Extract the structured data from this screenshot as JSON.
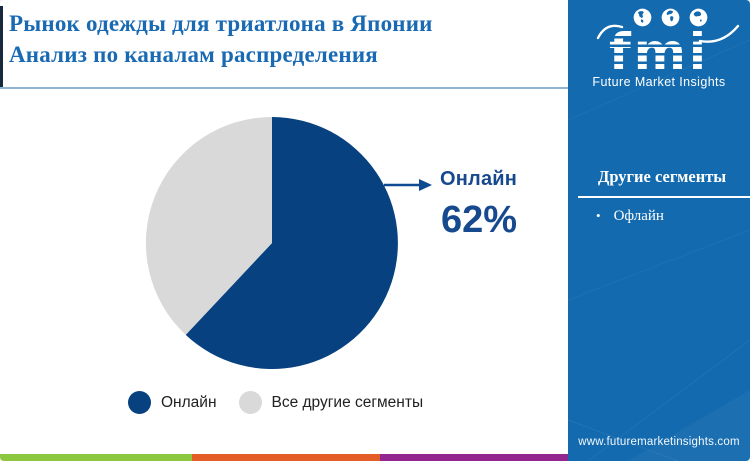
{
  "title": {
    "line1": "Рынок одежды для триатлона в Японии",
    "line2": "Анализ по каналам распределения"
  },
  "chart_data": {
    "type": "pie",
    "title": "Рынок одежды для триатлона в Японии — анализ по каналам распределения",
    "labels": [
      "Онлайн",
      "Все другие сегменты"
    ],
    "values": [
      62,
      38
    ],
    "colors": [
      "#07417f",
      "#d9d9d9"
    ],
    "callout": {
      "label": "Онлайн",
      "value": "62%"
    },
    "legend_position": "bottom",
    "start_angle_deg": 0,
    "direction": "clockwise"
  },
  "logo": {
    "word": "fmi",
    "subtitle": "Future Market Insights",
    "icons": [
      "globe-americas-icon",
      "globe-europe-icon",
      "globe-asia-icon"
    ]
  },
  "side_panel": {
    "heading": "Другие сегменты",
    "items": [
      "Офлайн"
    ],
    "website": "www.futuremarketinsights.com",
    "bg_color": "#136aae"
  },
  "footer_strip": {
    "colors": [
      "#8dc63f",
      "#e55d26",
      "#92278f"
    ]
  },
  "colors": {
    "title_text": "#1a6ab3",
    "callout_text": "#17498f",
    "pie_online": "#07417f",
    "pie_other": "#d9d9d9"
  }
}
